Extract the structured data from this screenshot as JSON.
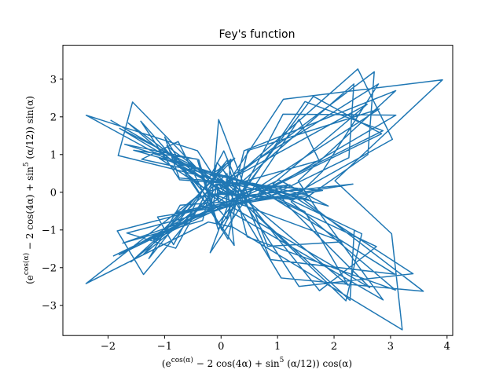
{
  "chart_data": {
    "type": "line",
    "title": "Fey's function",
    "xlabel": "(e^{cos(α)} − 2 cos(4α) + sin^5(α/12)) cos(α)",
    "ylabel": "(e^{cos(α)} − 2 cos(4α) + sin^5(α/12)) sin(α)",
    "xlim": [
      -2.8,
      4.1
    ],
    "ylim": [
      -3.8,
      3.9
    ],
    "xticks": [
      -2,
      -1,
      0,
      1,
      2,
      3,
      4
    ],
    "yticks": [
      -3,
      -2,
      -1,
      0,
      1,
      2,
      3
    ],
    "xtick_labels": [
      "−2",
      "−1",
      "0",
      "1",
      "2",
      "3",
      "4"
    ],
    "ytick_labels": [
      "−3",
      "−2",
      "−1",
      "0",
      "1",
      "2",
      "3"
    ],
    "grid": false,
    "series_color": "#1f77b4",
    "parameter_range": "alpha from 0 to 24π, sampled every 0.5"
  }
}
